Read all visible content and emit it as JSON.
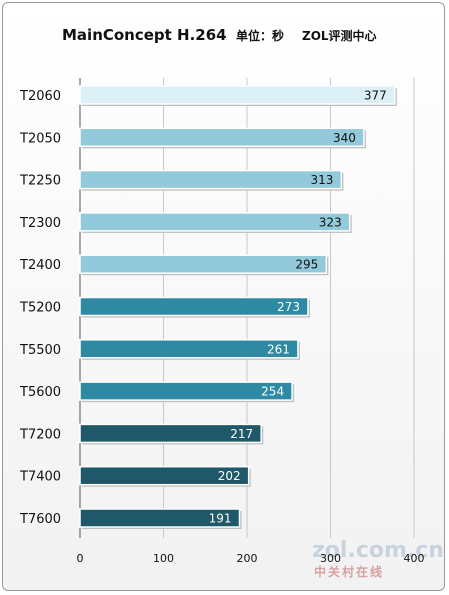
{
  "chart_data": {
    "type": "bar",
    "orientation": "horizontal",
    "title": "MainConcept H.264",
    "subtitle": "单位：秒",
    "source_label": "ZOL评测中心",
    "categories": [
      "T2060",
      "T2050",
      "T2250",
      "T2300",
      "T2400",
      "T5200",
      "T5500",
      "T5600",
      "T7200",
      "T7400",
      "T7600"
    ],
    "values": [
      377,
      340,
      313,
      323,
      295,
      273,
      261,
      254,
      217,
      202,
      191
    ],
    "xlim": [
      0,
      400
    ],
    "xticks": [
      0,
      100,
      200,
      300,
      400
    ],
    "grid": true,
    "colors": {
      "T2060": "#dcf0f7",
      "T2050": "#92cadc",
      "T2250": "#92cadc",
      "T2300": "#92cadc",
      "T2400": "#92cadc",
      "T5200": "#2e8aa3",
      "T5500": "#2e8aa3",
      "T5600": "#2e8aa3",
      "T7200": "#1f5868",
      "T7400": "#1f5868",
      "T7600": "#1f5868"
    },
    "label_colors": {
      "T2060": "#111111",
      "T2050": "#111111",
      "T2250": "#111111",
      "T2300": "#111111",
      "T2400": "#111111",
      "T5200": "#ffffff",
      "T5500": "#ffffff",
      "T5600": "#ffffff",
      "T7200": "#ffffff",
      "T7400": "#ffffff",
      "T7600": "#ffffff"
    }
  },
  "watermark": {
    "logo_text": "zol.com.cn",
    "tagline": "中关村在线"
  }
}
